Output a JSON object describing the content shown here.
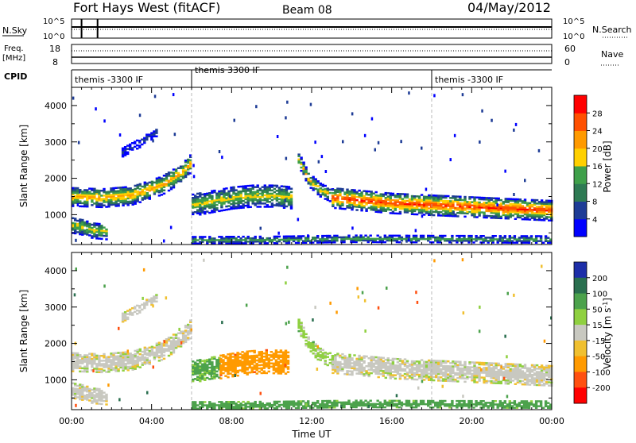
{
  "header": {
    "station": "Fort Hays West (fitACF)",
    "beam": "Beam 08",
    "date": "04/May/2012"
  },
  "meta_panel": {
    "nsky_label": "N.Sky",
    "nsky_ticks": [
      "10^5",
      "10^0"
    ],
    "nsearch_label": "N.Search",
    "nsearch_ticks": [
      "10^5",
      "10^0"
    ],
    "freq_label": "Freq.",
    "freq_unit": "[MHz]",
    "freq_ticks": [
      "18",
      "8"
    ],
    "nave_label": "Nave",
    "nave_ticks": [
      "60",
      "0"
    ],
    "cpid_label": "CPID",
    "cpid_segments": [
      {
        "label": "themis -3300 IF",
        "start_hour": 0
      },
      {
        "label": "themis 3300 IF",
        "start_hour": 6
      },
      {
        "label": "themis -3300 IF",
        "start_hour": 18
      }
    ]
  },
  "chart_data": [
    {
      "type": "heatmap",
      "parameter": "Power",
      "ylabel": "Slant Range [km]",
      "ylim": [
        180,
        4500
      ],
      "yticks": [
        "1000",
        "2000",
        "3000",
        "4000"
      ],
      "xlim": [
        0,
        24
      ],
      "colorbar_label": "Power [dB]",
      "colorbar_ticks": [
        "4",
        "8",
        "12",
        "16",
        "20",
        "24",
        "28"
      ],
      "colorbar_range": [
        0,
        32
      ],
      "colors": [
        "#0000ff",
        "#1e3c96",
        "#2e7a53",
        "#3fa04a",
        "#ffd000",
        "#ff9a00",
        "#ff5000",
        "#ff0000"
      ],
      "features": [
        {
          "name": "evening band",
          "t": [
            0,
            1.5,
            3,
            4.5,
            5.5,
            6
          ],
          "center_km": [
            1480,
            1450,
            1520,
            1800,
            2150,
            2450
          ],
          "width_km": 260,
          "peak_db": 22
        },
        {
          "name": "high patch",
          "t": [
            2.5,
            3.5,
            4.3
          ],
          "center_km": [
            2700,
            3000,
            3300
          ],
          "width_km": 120,
          "peak_db": 6
        },
        {
          "name": "low echoes",
          "t": [
            0,
            0.5,
            1,
            1.8
          ],
          "center_km": [
            700,
            650,
            560,
            520
          ],
          "width_km": 220,
          "peak_db": 18
        },
        {
          "name": "midnight band",
          "t": [
            6,
            7,
            8,
            9,
            10,
            11
          ],
          "center_km": [
            1250,
            1350,
            1450,
            1500,
            1500,
            1450
          ],
          "width_km": 300,
          "peak_db": 18
        },
        {
          "name": "dawn spike",
          "t": [
            11.3,
            11.8,
            12.4,
            13
          ],
          "center_km": [
            2500,
            1950,
            1650,
            1500
          ],
          "width_km": 180,
          "peak_db": 20
        },
        {
          "name": "morning band",
          "t": [
            13,
            16,
            18,
            20,
            22,
            24
          ],
          "center_km": [
            1450,
            1300,
            1250,
            1200,
            1150,
            1100
          ],
          "width_km": 280,
          "peak_db": 28
        },
        {
          "name": "near range ground",
          "t": [
            6,
            10,
            14,
            24
          ],
          "center_km": [
            280,
            290,
            320,
            300
          ],
          "width_km": 90,
          "peak_db": 14
        }
      ]
    },
    {
      "type": "heatmap",
      "parameter": "Velocity",
      "ylabel": "Slant Range [km]",
      "xlabel": "Time UT",
      "ylim": [
        180,
        4500
      ],
      "yticks": [
        "1000",
        "2000",
        "3000",
        "4000"
      ],
      "xlim": [
        0,
        24
      ],
      "xticks": [
        "00:00",
        "04:00",
        "08:00",
        "12:00",
        "16:00",
        "20:00",
        "00:00"
      ],
      "colorbar_label": "Velocity [m s^-1]",
      "colorbar_ticks": [
        "200",
        "100",
        "50",
        "15",
        "-15",
        "-50",
        "-100",
        "-200"
      ],
      "colorbar_range": [
        -250,
        250
      ],
      "colors": [
        "#1d2ea8",
        "#2a6f4f",
        "#4ca24c",
        "#8fd040",
        "#c8c8c0",
        "#f0c030",
        "#ff9a00",
        "#ff5010",
        "#ff0000"
      ],
      "features": [
        {
          "name": "evening band",
          "t": [
            0,
            1.5,
            3,
            4.5,
            5.5,
            6
          ],
          "center_km": [
            1480,
            1450,
            1520,
            1800,
            2150,
            2450
          ],
          "width_km": 260,
          "velocity": 0
        },
        {
          "name": "high patch",
          "t": [
            2.5,
            3.5,
            4.3
          ],
          "center_km": [
            2700,
            3000,
            3300
          ],
          "width_km": 120,
          "velocity": 0
        },
        {
          "name": "low echoes",
          "t": [
            0,
            0.5,
            1,
            1.8
          ],
          "center_km": [
            700,
            650,
            560,
            520
          ],
          "width_km": 220,
          "velocity": 0
        },
        {
          "name": "midnight band west",
          "t": [
            6,
            6.8,
            7.4
          ],
          "center_km": [
            1200,
            1300,
            1350
          ],
          "width_km": 300,
          "velocity": 60
        },
        {
          "name": "midnight band east",
          "t": [
            7.4,
            8.5,
            9.5,
            10.8
          ],
          "center_km": [
            1350,
            1450,
            1500,
            1480
          ],
          "width_km": 330,
          "velocity": -80
        },
        {
          "name": "dawn spike",
          "t": [
            11.3,
            11.8,
            12.4,
            13
          ],
          "center_km": [
            2500,
            1950,
            1650,
            1500
          ],
          "width_km": 180,
          "velocity": 30
        },
        {
          "name": "morning band",
          "t": [
            13,
            16,
            18,
            20,
            22,
            24
          ],
          "center_km": [
            1450,
            1300,
            1250,
            1200,
            1150,
            1100
          ],
          "width_km": 280,
          "velocity": 0
        },
        {
          "name": "near range ground",
          "t": [
            6,
            10,
            14,
            24
          ],
          "center_km": [
            280,
            290,
            320,
            300
          ],
          "width_km": 90,
          "velocity": 70
        }
      ]
    }
  ]
}
